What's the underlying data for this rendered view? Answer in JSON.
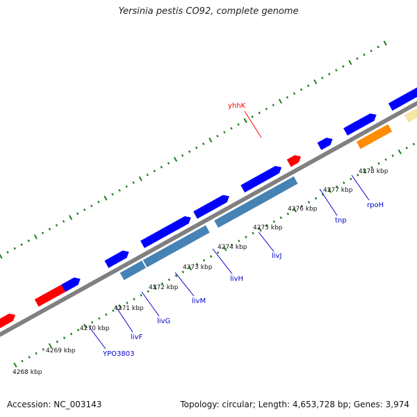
{
  "title": "Yersinia pestis CO92, complete genome",
  "footer": {
    "accession": "Accession: NC_003143",
    "summary": "Topology: circular; Length: 4,653,728 bp; Genes: 3,974"
  },
  "colors": {
    "backbone": "#808080",
    "cds_forward": "#0000ff",
    "cds_reverse": "#4682b4",
    "rna": "#ff0000",
    "orange_feature": "#ff8c00",
    "pale_feature": "#f5e6a3",
    "tick": "#1a7a1a",
    "gene_label_blue": "#0000cc",
    "gene_label_red": "#ff0000"
  },
  "ruler_labels": [
    "4268 kbp",
    "4269 kbp",
    "4270 kbp",
    "4271 kbp",
    "4272 kbp",
    "4273 kbp",
    "4274 kbp",
    "4275 kbp",
    "4276 kbp",
    "4277 kbp",
    "4278 kbp"
  ],
  "gene_labels": [
    {
      "name": "YPO3803",
      "color": "gene_label_blue"
    },
    {
      "name": "livF",
      "color": "gene_label_blue"
    },
    {
      "name": "livG",
      "color": "gene_label_blue"
    },
    {
      "name": "livM",
      "color": "gene_label_blue"
    },
    {
      "name": "livH",
      "color": "gene_label_blue"
    },
    {
      "name": "livJ",
      "color": "gene_label_blue"
    },
    {
      "name": "tnp",
      "color": "gene_label_blue"
    },
    {
      "name": "rpoH",
      "color": "gene_label_blue"
    },
    {
      "name": "yhhK",
      "color": "gene_label_red"
    }
  ],
  "features": [
    {
      "type": "rna",
      "strand": "forward"
    },
    {
      "type": "rna",
      "strand": "forward"
    },
    {
      "type": "cds",
      "strand": "forward"
    },
    {
      "type": "cds",
      "strand": "forward"
    },
    {
      "type": "cds",
      "strand": "reverse"
    },
    {
      "type": "cds",
      "strand": "reverse"
    },
    {
      "type": "cds",
      "strand": "forward"
    },
    {
      "type": "cds",
      "strand": "forward"
    },
    {
      "type": "cds",
      "strand": "reverse"
    },
    {
      "type": "cds",
      "strand": "forward"
    },
    {
      "type": "cds",
      "strand": "reverse"
    },
    {
      "type": "rna",
      "strand": "forward"
    },
    {
      "type": "cds",
      "strand": "forward"
    },
    {
      "type": "cds",
      "strand": "forward"
    },
    {
      "type": "orange_feature",
      "strand": "reverse"
    },
    {
      "type": "cds",
      "strand": "forward"
    },
    {
      "type": "pale_feature",
      "strand": "reverse"
    },
    {
      "type": "cds",
      "strand": "forward"
    }
  ]
}
